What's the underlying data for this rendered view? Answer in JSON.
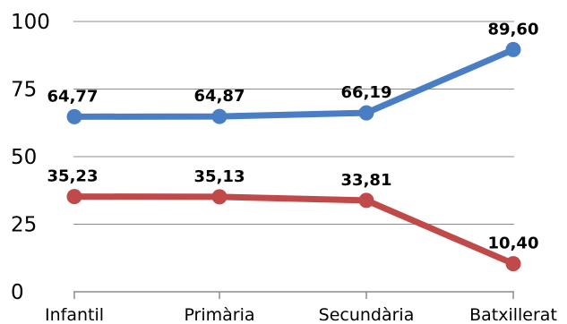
{
  "chart_data": {
    "type": "line",
    "categories": [
      "Infantil",
      "Primària",
      "Secundària",
      "Batxillerat"
    ],
    "ylim": [
      0,
      100
    ],
    "yticks": [
      0,
      25,
      50,
      75,
      100
    ],
    "grid": true,
    "series": [
      {
        "values": [
          64.77,
          64.87,
          66.19,
          89.6
        ],
        "labels": [
          "64,77",
          "64,87",
          "66,19",
          "89,60"
        ],
        "color": "#4a7ec4"
      },
      {
        "values": [
          35.23,
          35.13,
          33.81,
          10.4
        ],
        "labels": [
          "35,23",
          "35,13",
          "33,81",
          "10,40"
        ],
        "color": "#c04a4a"
      }
    ]
  }
}
